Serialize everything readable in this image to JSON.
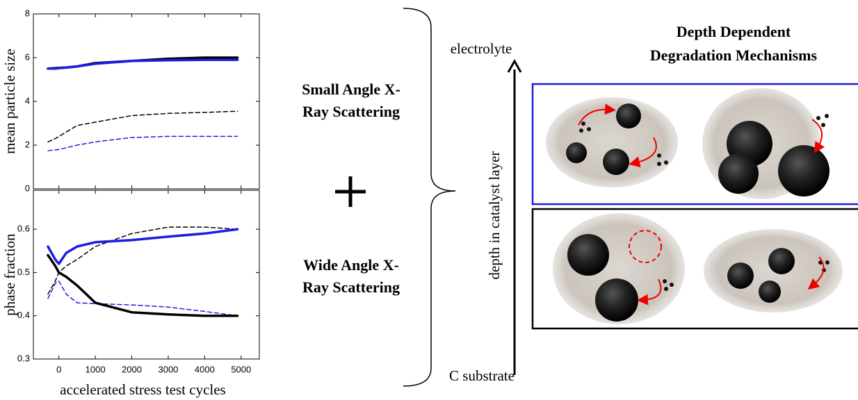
{
  "chart_data": [
    {
      "type": "line",
      "ylabel": "mean particle size",
      "xlim": [
        -700,
        5500
      ],
      "ylim": [
        0,
        8
      ],
      "yticks": [
        0,
        2,
        4,
        6,
        8
      ],
      "x": [
        -300,
        -100,
        0,
        200,
        500,
        1000,
        2000,
        3000,
        4000,
        4900
      ],
      "series": [
        {
          "color": "#000000",
          "linestyle": "solid",
          "values": [
            5.5,
            5.52,
            5.53,
            5.55,
            5.6,
            5.75,
            5.85,
            5.95,
            6.0,
            6.0
          ]
        },
        {
          "color": "#1c1ce0",
          "linestyle": "solid",
          "values": [
            5.5,
            5.5,
            5.52,
            5.55,
            5.6,
            5.72,
            5.85,
            5.88,
            5.9,
            5.9
          ]
        },
        {
          "color": "#000000",
          "linestyle": "dashed",
          "values": [
            2.15,
            2.3,
            2.4,
            2.6,
            2.9,
            3.05,
            3.35,
            3.45,
            3.5,
            3.55
          ]
        },
        {
          "color": "#1c1ce0",
          "linestyle": "dashed",
          "values": [
            1.75,
            1.78,
            1.8,
            1.88,
            2.0,
            2.15,
            2.35,
            2.4,
            2.4,
            2.4
          ]
        }
      ]
    },
    {
      "type": "line",
      "ylabel": "phase fraction",
      "xlabel": "accelerated stress test cycles",
      "xlim": [
        -700,
        5500
      ],
      "xticks": [
        0,
        1000,
        2000,
        3000,
        4000,
        5000
      ],
      "ylim": [
        0.3,
        0.69
      ],
      "yticks": [
        0.3,
        0.4,
        0.5,
        0.6
      ],
      "x": [
        -300,
        -100,
        0,
        200,
        500,
        1000,
        2000,
        3000,
        4000,
        4900
      ],
      "series": [
        {
          "color": "#000000",
          "linestyle": "dashed",
          "values": [
            0.45,
            0.48,
            0.5,
            0.515,
            0.53,
            0.56,
            0.59,
            0.605,
            0.605,
            0.6
          ]
        },
        {
          "color": "#1c1ce0",
          "linestyle": "dashed",
          "values": [
            0.44,
            0.475,
            0.48,
            0.45,
            0.43,
            0.428,
            0.425,
            0.42,
            0.41,
            0.4
          ]
        },
        {
          "color": "#000000",
          "linestyle": "solid",
          "values": [
            0.54,
            0.515,
            0.5,
            0.49,
            0.47,
            0.43,
            0.408,
            0.403,
            0.4,
            0.4
          ]
        },
        {
          "color": "#1c1ce0",
          "linestyle": "solid",
          "values": [
            0.56,
            0.53,
            0.52,
            0.545,
            0.56,
            0.57,
            0.575,
            0.583,
            0.59,
            0.6
          ]
        }
      ]
    }
  ],
  "diagram": {
    "saxs": [
      "Small Angle X-",
      "Ray Scattering"
    ],
    "waxs": [
      "Wide Angle X-",
      "Ray Scattering"
    ],
    "title": [
      "Depth Dependent",
      "Degradation Mechanisms"
    ],
    "top_label": "electrolyte",
    "bottom_label": "C substrate",
    "axis_label": "depth in catalyst layer"
  }
}
